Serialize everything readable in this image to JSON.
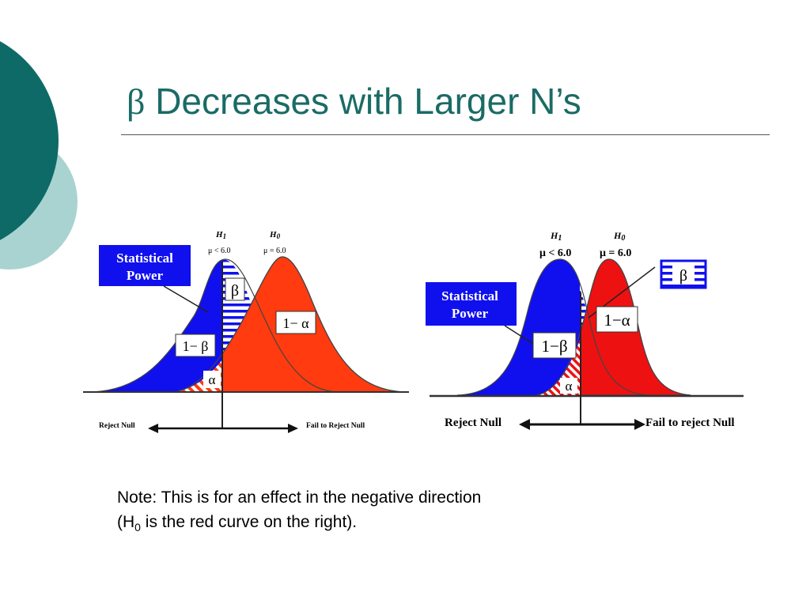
{
  "slide": {
    "title_symbol": "β",
    "title": "Decreases with Larger N’s",
    "note_line1": "Note:  This is for an effect in the negative direction",
    "note_line2_prefix": "(H",
    "note_line2_sub": "0",
    "note_line2_suffix": " is the red curve on the right)."
  },
  "figures": [
    {
      "h1_letter": "H",
      "h1_sub": "1",
      "h1_cond": "μ < 6.0",
      "h0_letter": "H",
      "h0_sub": "0",
      "h0_cond": "μ = 6.0",
      "power_line1": "Statistical",
      "power_line2": "Power",
      "beta": "β",
      "one_minus_alpha": "1− α",
      "one_minus_beta": "1− β",
      "alpha": "α",
      "reject_label": "Reject Null",
      "fail_label": "Fail to Reject Null"
    },
    {
      "h1_letter": "H",
      "h1_sub": "1",
      "h1_cond": "μ < 6.0",
      "h0_letter": "H",
      "h0_sub": "0",
      "h0_cond": "μ = 6.0",
      "power_line1": "Statistical",
      "power_line2": "Power",
      "beta": "β",
      "one_minus_alpha": "1−α",
      "one_minus_beta": "1−β",
      "alpha": "α",
      "reject_label": "Reject Null",
      "fail_label": "Fail to reject Null"
    }
  ],
  "colors": {
    "accent": "#1a6b66",
    "deco_dark": "#0e6a66",
    "deco_light": "#a9d3d1",
    "h1_curve": "#1010ee",
    "h0_curve_left": "#ff3b0f",
    "h0_curve_right": "#ee1111"
  }
}
